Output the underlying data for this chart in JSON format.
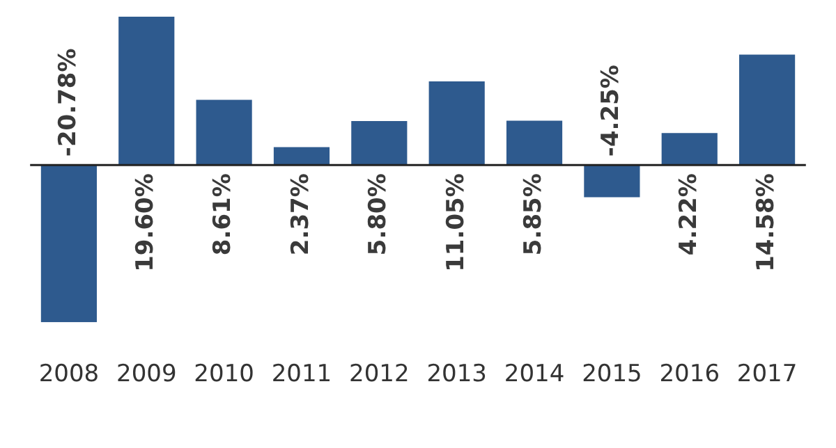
{
  "chart_data": {
    "type": "bar",
    "categories": [
      "2008",
      "2009",
      "2010",
      "2011",
      "2012",
      "2013",
      "2014",
      "2015",
      "2016",
      "2017"
    ],
    "values": [
      -20.78,
      19.6,
      8.61,
      2.37,
      5.8,
      11.05,
      5.85,
      -4.25,
      4.22,
      14.58
    ],
    "value_labels": [
      "-20.78%",
      "19.60%",
      "8.61%",
      "2.37%",
      "5.80%",
      "11.05%",
      "5.85%",
      "-4.25%",
      "4.22%",
      "14.58%"
    ],
    "color": "#2e5a8e",
    "relative": false,
    "grid": false,
    "legend": false
  }
}
